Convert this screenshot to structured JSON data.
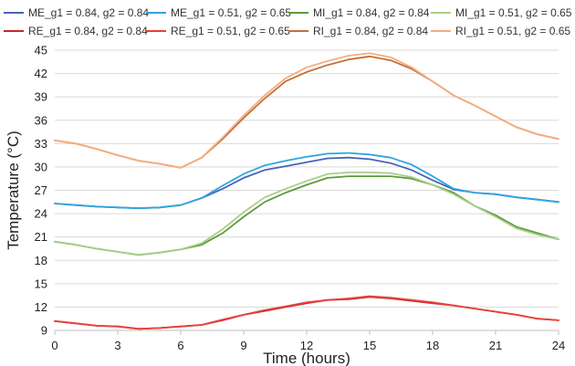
{
  "chart_data": {
    "type": "line",
    "title": "",
    "xlabel": "Time (hours)",
    "ylabel": "Temperature (°C)",
    "xlim": [
      0,
      24
    ],
    "ylim": [
      9,
      45
    ],
    "x_ticks": [
      0,
      3,
      6,
      9,
      12,
      15,
      18,
      21,
      24
    ],
    "y_ticks": [
      9,
      12,
      15,
      18,
      21,
      24,
      27,
      30,
      33,
      36,
      39,
      42,
      45
    ],
    "grid": "horizontal",
    "legend_position": "top",
    "legend_layout": "two rows of four entries",
    "series": [
      {
        "name": "ME_g1 = 0.84, g2 = 0.84",
        "color": "#4a63b8",
        "points": [
          [
            0,
            25.3
          ],
          [
            1,
            25.1
          ],
          [
            2,
            24.9
          ],
          [
            3,
            24.8
          ],
          [
            4,
            24.7
          ],
          [
            5,
            24.8
          ],
          [
            6,
            25.1
          ],
          [
            7,
            26.0
          ],
          [
            8,
            27.2
          ],
          [
            9,
            28.6
          ],
          [
            10,
            29.6
          ],
          [
            11,
            30.1
          ],
          [
            12,
            30.6
          ],
          [
            13,
            31.1
          ],
          [
            14,
            31.2
          ],
          [
            15,
            31.0
          ],
          [
            16,
            30.5
          ],
          [
            17,
            29.6
          ],
          [
            18,
            28.3
          ],
          [
            19,
            27.1
          ],
          [
            20,
            26.7
          ],
          [
            21,
            26.5
          ],
          [
            22,
            26.1
          ],
          [
            23,
            25.8
          ],
          [
            24,
            25.5
          ]
        ]
      },
      {
        "name": "ME_g1 = 0.51, g2 = 0.65",
        "color": "#2ea6df",
        "points": [
          [
            0,
            25.3
          ],
          [
            1,
            25.1
          ],
          [
            2,
            24.9
          ],
          [
            3,
            24.8
          ],
          [
            4,
            24.7
          ],
          [
            5,
            24.8
          ],
          [
            6,
            25.1
          ],
          [
            7,
            26.0
          ],
          [
            8,
            27.6
          ],
          [
            9,
            29.1
          ],
          [
            10,
            30.2
          ],
          [
            11,
            30.8
          ],
          [
            12,
            31.3
          ],
          [
            13,
            31.7
          ],
          [
            14,
            31.8
          ],
          [
            15,
            31.6
          ],
          [
            16,
            31.2
          ],
          [
            17,
            30.3
          ],
          [
            18,
            28.8
          ],
          [
            19,
            27.2
          ],
          [
            20,
            26.7
          ],
          [
            21,
            26.5
          ],
          [
            22,
            26.1
          ],
          [
            23,
            25.8
          ],
          [
            24,
            25.5
          ]
        ]
      },
      {
        "name": "MI_g1 = 0.84, g2 = 0.84",
        "color": "#5f9a3c",
        "points": [
          [
            0,
            20.4
          ],
          [
            1,
            20.0
          ],
          [
            2,
            19.5
          ],
          [
            3,
            19.1
          ],
          [
            4,
            18.7
          ],
          [
            5,
            19.0
          ],
          [
            6,
            19.4
          ],
          [
            7,
            20.0
          ],
          [
            8,
            21.5
          ],
          [
            9,
            23.6
          ],
          [
            10,
            25.5
          ],
          [
            11,
            26.7
          ],
          [
            12,
            27.7
          ],
          [
            13,
            28.6
          ],
          [
            14,
            28.8
          ],
          [
            15,
            28.8
          ],
          [
            16,
            28.8
          ],
          [
            17,
            28.5
          ],
          [
            18,
            27.7
          ],
          [
            19,
            26.7
          ],
          [
            20,
            25.0
          ],
          [
            21,
            23.8
          ],
          [
            22,
            22.3
          ],
          [
            23,
            21.5
          ],
          [
            24,
            20.7
          ]
        ]
      },
      {
        "name": "MI_g1 = 0.51, g2 = 0.65",
        "color": "#a6cf8a",
        "points": [
          [
            0,
            20.4
          ],
          [
            1,
            20.0
          ],
          [
            2,
            19.5
          ],
          [
            3,
            19.1
          ],
          [
            4,
            18.7
          ],
          [
            5,
            19.0
          ],
          [
            6,
            19.4
          ],
          [
            7,
            20.2
          ],
          [
            8,
            22.0
          ],
          [
            9,
            24.2
          ],
          [
            10,
            26.1
          ],
          [
            11,
            27.2
          ],
          [
            12,
            28.2
          ],
          [
            13,
            29.1
          ],
          [
            14,
            29.3
          ],
          [
            15,
            29.3
          ],
          [
            16,
            29.2
          ],
          [
            17,
            28.7
          ],
          [
            18,
            27.7
          ],
          [
            19,
            26.5
          ],
          [
            20,
            25.0
          ],
          [
            21,
            23.6
          ],
          [
            22,
            22.1
          ],
          [
            23,
            21.3
          ],
          [
            24,
            20.7
          ]
        ]
      },
      {
        "name": "RE_g1 = 0.84, g2 = 0.84",
        "color": "#c0282d",
        "points": [
          [
            0,
            10.2
          ],
          [
            1,
            9.9
          ],
          [
            2,
            9.6
          ],
          [
            3,
            9.5
          ],
          [
            4,
            9.2
          ],
          [
            5,
            9.3
          ],
          [
            6,
            9.5
          ],
          [
            7,
            9.7
          ],
          [
            8,
            10.3
          ],
          [
            9,
            11.0
          ],
          [
            10,
            11.5
          ],
          [
            11,
            12.0
          ],
          [
            12,
            12.5
          ],
          [
            13,
            12.9
          ],
          [
            14,
            13.0
          ],
          [
            15,
            13.3
          ],
          [
            16,
            13.1
          ],
          [
            17,
            12.8
          ],
          [
            18,
            12.5
          ],
          [
            19,
            12.2
          ],
          [
            20,
            11.8
          ],
          [
            21,
            11.4
          ],
          [
            22,
            11.0
          ],
          [
            23,
            10.5
          ],
          [
            24,
            10.3
          ]
        ]
      },
      {
        "name": "RE_g1 = 0.51, g2 = 0.65",
        "color": "#e8413b",
        "points": [
          [
            0,
            10.2
          ],
          [
            1,
            9.9
          ],
          [
            2,
            9.6
          ],
          [
            3,
            9.5
          ],
          [
            4,
            9.2
          ],
          [
            5,
            9.3
          ],
          [
            6,
            9.5
          ],
          [
            7,
            9.7
          ],
          [
            8,
            10.4
          ],
          [
            9,
            11.0
          ],
          [
            10,
            11.6
          ],
          [
            11,
            12.1
          ],
          [
            12,
            12.6
          ],
          [
            13,
            12.9
          ],
          [
            14,
            13.1
          ],
          [
            15,
            13.4
          ],
          [
            16,
            13.2
          ],
          [
            17,
            12.9
          ],
          [
            18,
            12.6
          ],
          [
            19,
            12.2
          ],
          [
            20,
            11.8
          ],
          [
            21,
            11.4
          ],
          [
            22,
            11.0
          ],
          [
            23,
            10.5
          ],
          [
            24,
            10.3
          ]
        ]
      },
      {
        "name": "RI_g1 = 0.84, g2 = 0.84",
        "color": "#c0713b",
        "points": [
          [
            0,
            33.4
          ],
          [
            1,
            33.0
          ],
          [
            2,
            32.3
          ],
          [
            3,
            31.5
          ],
          [
            4,
            30.8
          ],
          [
            5,
            30.4
          ],
          [
            6,
            29.9
          ],
          [
            7,
            31.2
          ],
          [
            8,
            33.6
          ],
          [
            9,
            36.3
          ],
          [
            10,
            38.8
          ],
          [
            11,
            41.0
          ],
          [
            12,
            42.2
          ],
          [
            13,
            43.1
          ],
          [
            14,
            43.8
          ],
          [
            15,
            44.2
          ],
          [
            16,
            43.7
          ],
          [
            17,
            42.6
          ],
          [
            18,
            41.0
          ],
          [
            19,
            39.2
          ],
          [
            20,
            37.9
          ],
          [
            21,
            36.5
          ],
          [
            22,
            35.1
          ],
          [
            23,
            34.2
          ],
          [
            24,
            33.6
          ]
        ]
      },
      {
        "name": "RI_g1 = 0.51, g2 = 0.65",
        "color": "#f4ae7f",
        "points": [
          [
            0,
            33.4
          ],
          [
            1,
            33.0
          ],
          [
            2,
            32.3
          ],
          [
            3,
            31.5
          ],
          [
            4,
            30.8
          ],
          [
            5,
            30.4
          ],
          [
            6,
            29.9
          ],
          [
            7,
            31.2
          ],
          [
            8,
            33.8
          ],
          [
            9,
            36.6
          ],
          [
            10,
            39.2
          ],
          [
            11,
            41.4
          ],
          [
            12,
            42.8
          ],
          [
            13,
            43.6
          ],
          [
            14,
            44.3
          ],
          [
            15,
            44.6
          ],
          [
            16,
            44.1
          ],
          [
            17,
            42.8
          ],
          [
            18,
            41.0
          ],
          [
            19,
            39.2
          ],
          [
            20,
            37.9
          ],
          [
            21,
            36.5
          ],
          [
            22,
            35.1
          ],
          [
            23,
            34.2
          ],
          [
            24,
            33.6
          ]
        ]
      }
    ]
  }
}
